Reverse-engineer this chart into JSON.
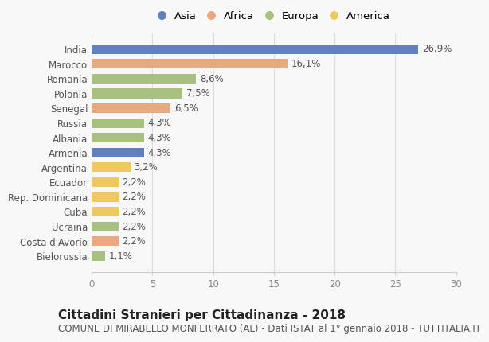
{
  "countries": [
    "India",
    "Marocco",
    "Romania",
    "Polonia",
    "Senegal",
    "Russia",
    "Albania",
    "Armenia",
    "Argentina",
    "Ecuador",
    "Rep. Dominicana",
    "Cuba",
    "Ucraina",
    "Costa d'Avorio",
    "Bielorussia"
  ],
  "values": [
    26.9,
    16.1,
    8.6,
    7.5,
    6.5,
    4.3,
    4.3,
    4.3,
    3.2,
    2.2,
    2.2,
    2.2,
    2.2,
    2.2,
    1.1
  ],
  "labels": [
    "26,9%",
    "16,1%",
    "8,6%",
    "7,5%",
    "6,5%",
    "4,3%",
    "4,3%",
    "4,3%",
    "3,2%",
    "2,2%",
    "2,2%",
    "2,2%",
    "2,2%",
    "2,2%",
    "1,1%"
  ],
  "continents": [
    "Asia",
    "Africa",
    "Europa",
    "Europa",
    "Africa",
    "Europa",
    "Europa",
    "Asia",
    "America",
    "America",
    "America",
    "America",
    "Europa",
    "Africa",
    "Europa"
  ],
  "colors": {
    "Asia": "#6080c0",
    "Africa": "#e8a880",
    "Europa": "#a8c080",
    "America": "#f0c860"
  },
  "legend_order": [
    "Asia",
    "Africa",
    "Europa",
    "America"
  ],
  "xlim": [
    0,
    30
  ],
  "xticks": [
    0,
    5,
    10,
    15,
    20,
    25,
    30
  ],
  "title": "Cittadini Stranieri per Cittadinanza - 2018",
  "subtitle": "COMUNE DI MIRABELLO MONFERRATO (AL) - Dati ISTAT al 1° gennaio 2018 - TUTTITALIA.IT",
  "bg_color": "#f8f8f8",
  "bar_height": 0.65,
  "title_fontsize": 11,
  "subtitle_fontsize": 8.5,
  "label_fontsize": 8.5,
  "tick_fontsize": 8.5,
  "legend_fontsize": 9.5
}
